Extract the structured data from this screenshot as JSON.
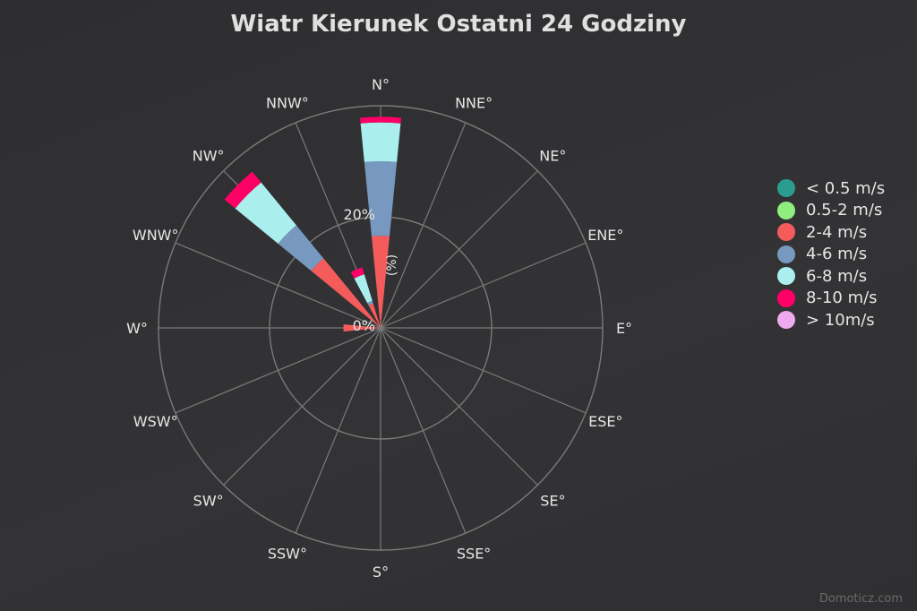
{
  "chart_data": {
    "type": "windrose",
    "title": "Wiatr Kierunek Ostatni 24 Godziny",
    "directions": [
      "N°",
      "NNE°",
      "NE°",
      "ENE°",
      "E°",
      "ESE°",
      "SE°",
      "SSE°",
      "S°",
      "SSW°",
      "SW°",
      "WSW°",
      "W°",
      "WNW°",
      "NW°",
      "NNW°"
    ],
    "radial_axis": {
      "unit_label": "(%)",
      "tick_labels": [
        "0%",
        "20%"
      ],
      "tick_values": [
        0,
        20
      ],
      "max": 40
    },
    "series": [
      {
        "name": "< 0.5 m/s",
        "color": "#2a9d8f",
        "values": [
          0,
          0,
          0,
          0,
          0,
          0,
          0,
          0,
          0,
          0,
          0,
          0,
          0.4,
          0,
          0,
          0
        ]
      },
      {
        "name": "0.5-2 m/s",
        "color": "#90ee7e",
        "values": [
          0,
          0,
          0,
          0,
          0,
          0,
          0,
          0,
          0,
          0,
          0,
          0,
          0,
          0,
          0,
          0
        ]
      },
      {
        "name": "2-4 m/s",
        "color": "#f45b5b",
        "values": [
          16.6,
          0,
          0,
          0,
          0,
          0,
          0,
          0,
          0,
          0,
          0,
          0,
          6.3,
          0,
          16.2,
          4.6
        ]
      },
      {
        "name": "4-6 m/s",
        "color": "#7798bf",
        "values": [
          13.4,
          0,
          0,
          0,
          0,
          0,
          0,
          0,
          0,
          0,
          0,
          0,
          0,
          0,
          7.7,
          0.5
        ]
      },
      {
        "name": "6-8 m/s",
        "color": "#aaeeee",
        "values": [
          7.0,
          0,
          0,
          0,
          0,
          0,
          0,
          0,
          0,
          0,
          0,
          0,
          0,
          0,
          10.0,
          5.0
        ]
      },
      {
        "name": "8-10 m/s",
        "color": "#ff0066",
        "values": [
          1.0,
          0,
          0,
          0,
          0,
          0,
          0,
          0,
          0,
          0,
          0,
          0,
          0,
          0,
          2.5,
          1.3
        ]
      },
      {
        "name": "> 10m/s",
        "color": "#eeaaee",
        "values": [
          0,
          0,
          0,
          0,
          0,
          0,
          0,
          0,
          0,
          0,
          0,
          0,
          0,
          0,
          0,
          0
        ]
      }
    ],
    "legend_position": "right",
    "grid": true
  },
  "credits": "Domoticz.com"
}
